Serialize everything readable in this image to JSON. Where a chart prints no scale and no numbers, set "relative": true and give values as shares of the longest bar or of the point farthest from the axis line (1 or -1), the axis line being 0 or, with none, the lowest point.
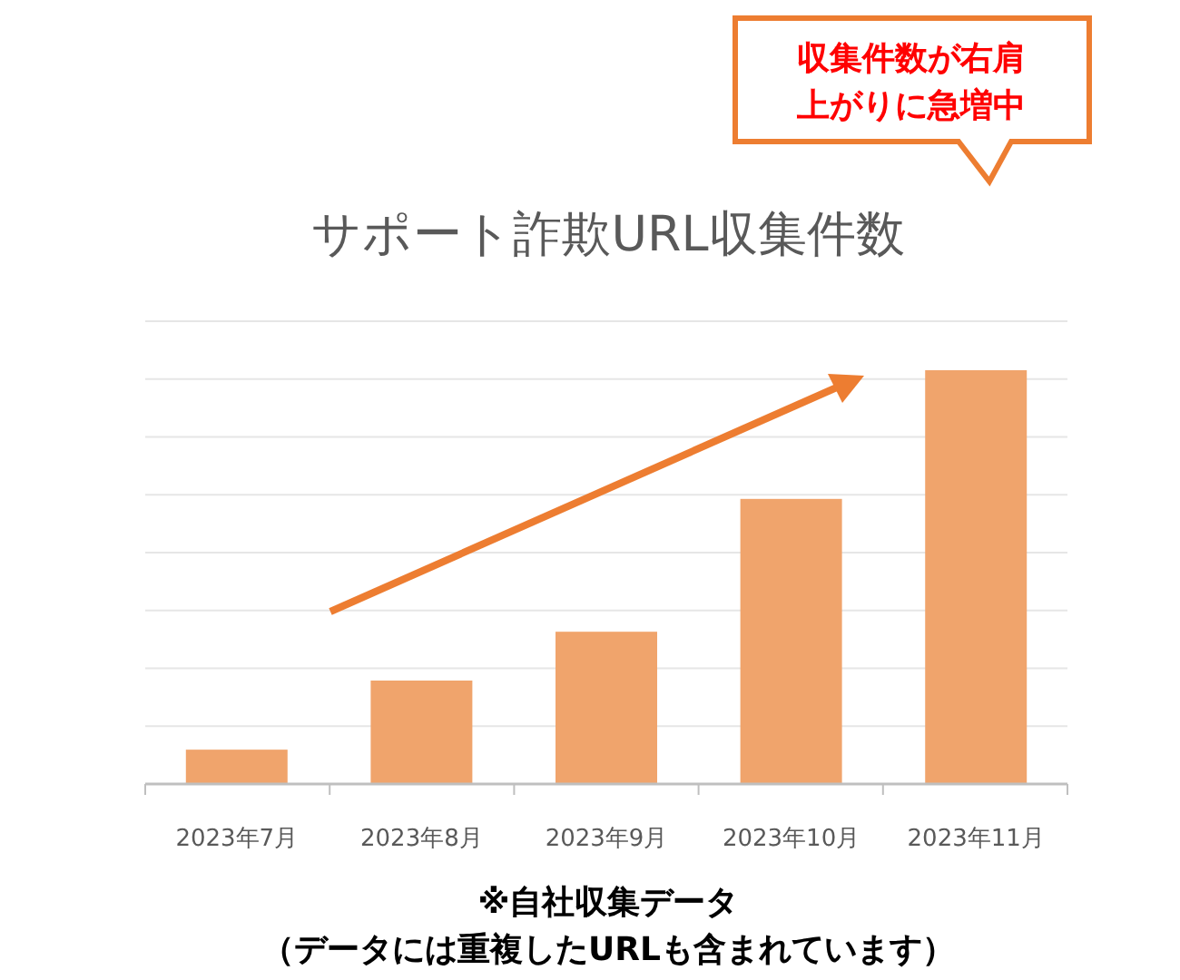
{
  "chart_data": {
    "type": "bar",
    "title": "サポート詐欺URL収集件数",
    "categories": [
      "2023年7月",
      "2023年8月",
      "2023年9月",
      "2023年10月",
      "2023年11月"
    ],
    "values": [
      0.083,
      0.25,
      0.368,
      0.689,
      1
    ],
    "color": "#f0a46c",
    "relative": true,
    "grid": "y",
    "annotations": [
      "収集件数が右肩上がりに急増中",
      "※自社収集データ",
      "（データには重複したURLも含まれています）"
    ]
  }
}
